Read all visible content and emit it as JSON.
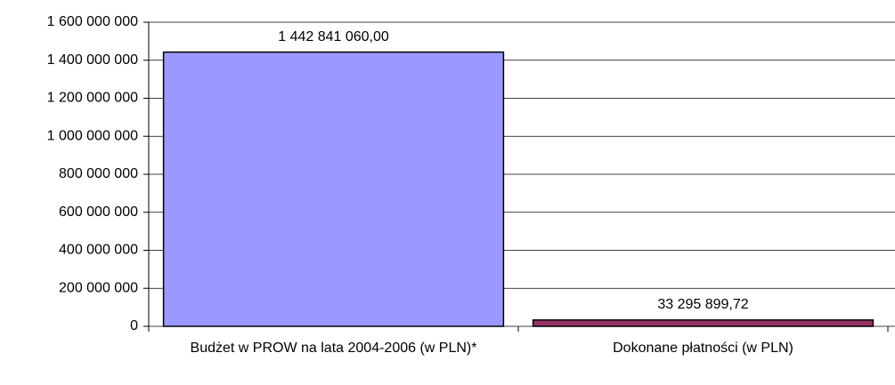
{
  "chart_data": {
    "type": "bar",
    "categories": [
      "Budżet w PROW na lata 2004-2006 (w PLN)*",
      "Dokonane płatności (w PLN)"
    ],
    "values": [
      1442841060.0,
      33295899.72
    ],
    "value_labels": [
      "1 442 841 060,00",
      "33 295 899,72"
    ],
    "colors": [
      "#9999ff",
      "#993366"
    ],
    "ylim": [
      0,
      1600000000
    ],
    "yticks": [
      0,
      {
        "value": 200000000,
        "label": "200 000 000"
      },
      {
        "value": 400000000,
        "label": "400 000 000"
      },
      {
        "value": 600000000,
        "label": "600 000 000"
      },
      {
        "value": 800000000,
        "label": "800 000 000"
      },
      {
        "value": 1000000000,
        "label": "1 000 000 000"
      },
      {
        "value": 1200000000,
        "label": "1 200 000 000"
      },
      {
        "value": 1400000000,
        "label": "1 400 000 000"
      },
      {
        "value": 1600000000,
        "label": "1 600 000 000"
      }
    ],
    "grid": true
  }
}
